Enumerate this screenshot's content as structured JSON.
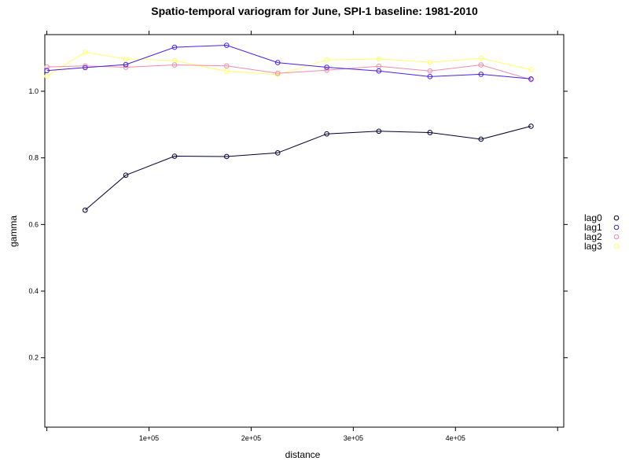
{
  "chart_data": {
    "type": "line",
    "title": "Spatio-temporal variogram for June, SPI-1 baseline: 1981-2010",
    "xlabel": "distance",
    "ylabel": "gamma",
    "xlim": [
      0,
      500000
    ],
    "ylim": [
      0,
      1.17
    ],
    "x_ticks": [
      {
        "value": 100000,
        "label": "1e+05"
      },
      {
        "value": 200000,
        "label": "2e+05"
      },
      {
        "value": 300000,
        "label": "3e+05"
      },
      {
        "value": 400000,
        "label": "4e+05"
      }
    ],
    "y_ticks": [
      {
        "value": 0.2,
        "label": "0.2"
      },
      {
        "value": 0.4,
        "label": "0.4"
      },
      {
        "value": 0.6,
        "label": "0.6"
      },
      {
        "value": 0.8,
        "label": "0.8"
      },
      {
        "value": 1.0,
        "label": "1.0"
      }
    ],
    "grid": false,
    "legend_position": "right",
    "series": [
      {
        "name": "lag0",
        "color": "#000033",
        "x": [
          37500,
          77300,
          125000,
          176000,
          226000,
          274000,
          325000,
          375000,
          425000,
          474000
        ],
        "y": [
          0.643,
          0.748,
          0.805,
          0.804,
          0.815,
          0.872,
          0.88,
          0.876,
          0.856,
          0.895
        ]
      },
      {
        "name": "lag1",
        "color": "#4a1fe0",
        "x": [
          0,
          37500,
          77300,
          125000,
          176000,
          226000,
          274000,
          325000,
          375000,
          425000,
          474000
        ],
        "y": [
          1.062,
          1.071,
          1.08,
          1.132,
          1.138,
          1.086,
          1.072,
          1.061,
          1.044,
          1.051,
          1.037
        ]
      },
      {
        "name": "lag2",
        "color": "#f08caa",
        "x": [
          0,
          37500,
          77300,
          125000,
          176000,
          226000,
          274000,
          325000,
          375000,
          425000,
          474000
        ],
        "y": [
          1.073,
          1.076,
          1.072,
          1.079,
          1.076,
          1.054,
          1.063,
          1.075,
          1.061,
          1.079,
          1.035
        ]
      },
      {
        "name": "lag3",
        "color": "#ffff6e",
        "x": [
          0,
          37500,
          77300,
          125000,
          176000,
          226000,
          274000,
          325000,
          375000,
          425000,
          474000
        ],
        "y": [
          1.045,
          1.117,
          1.097,
          1.092,
          1.06,
          1.05,
          1.094,
          1.097,
          1.087,
          1.099,
          1.065
        ]
      }
    ]
  }
}
